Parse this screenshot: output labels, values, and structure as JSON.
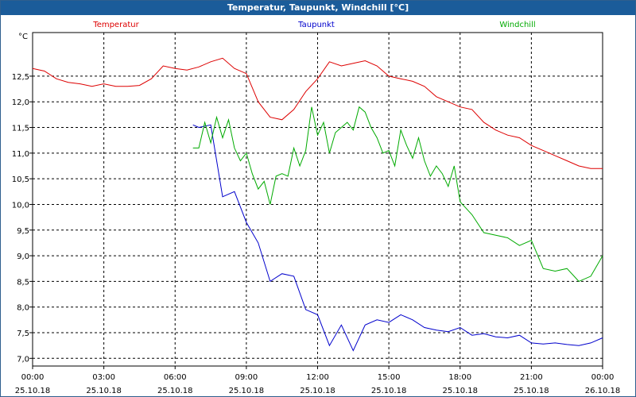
{
  "window": {
    "title": "Temperatur, Taupunkt, Windchill [°C]"
  },
  "chart_data": {
    "type": "line",
    "title": "Temperatur, Taupunkt, Windchill [°C]",
    "ylabel": "°C",
    "ylim": [
      6.85,
      13.35
    ],
    "grid": true,
    "legend_position": "top",
    "y_ticks": [
      "7,0",
      "7,5",
      "8,0",
      "8,5",
      "9,0",
      "9,5",
      "10,0",
      "10,5",
      "11,0",
      "11,5",
      "12,0",
      "12,5"
    ],
    "x_ticks": [
      {
        "time": "00:00",
        "date": "25.10.18"
      },
      {
        "time": "03:00",
        "date": "25.10.18"
      },
      {
        "time": "06:00",
        "date": "25.10.18"
      },
      {
        "time": "09:00",
        "date": "25.10.18"
      },
      {
        "time": "12:00",
        "date": "25.10.18"
      },
      {
        "time": "15:00",
        "date": "25.10.18"
      },
      {
        "time": "18:00",
        "date": "25.10.18"
      },
      {
        "time": "21:00",
        "date": "25.10.18"
      },
      {
        "time": "00:00",
        "date": "26.10.18"
      }
    ],
    "series": [
      {
        "name": "Temperatur",
        "color": "#dd0000",
        "x": [
          "00:00",
          "00:30",
          "01:00",
          "01:30",
          "02:00",
          "02:30",
          "03:00",
          "03:30",
          "04:00",
          "04:30",
          "05:00",
          "05:30",
          "06:00",
          "06:30",
          "07:00",
          "07:30",
          "08:00",
          "08:30",
          "09:00",
          "09:30",
          "10:00",
          "10:30",
          "11:00",
          "11:30",
          "12:00",
          "12:30",
          "13:00",
          "13:30",
          "14:00",
          "14:30",
          "15:00",
          "15:30",
          "16:00",
          "16:30",
          "17:00",
          "17:30",
          "18:00",
          "18:30",
          "19:00",
          "19:30",
          "20:00",
          "20:30",
          "21:00",
          "21:30",
          "22:00",
          "22:30",
          "23:00",
          "23:30",
          "24:00"
        ],
        "values": [
          12.65,
          12.6,
          12.45,
          12.38,
          12.35,
          12.3,
          12.35,
          12.3,
          12.3,
          12.32,
          12.45,
          12.7,
          12.65,
          12.62,
          12.68,
          12.78,
          12.85,
          12.65,
          12.55,
          12.0,
          11.7,
          11.65,
          11.85,
          12.2,
          12.45,
          12.78,
          12.7,
          12.75,
          12.8,
          12.7,
          12.5,
          12.45,
          12.4,
          12.3,
          12.1,
          12.0,
          11.9,
          11.85,
          11.6,
          11.45,
          11.35,
          11.3,
          11.15,
          11.05,
          10.95,
          10.85,
          10.75,
          10.7,
          10.7
        ]
      },
      {
        "name": "Taupunkt",
        "color": "#0000cc",
        "x": [
          "06:45",
          "07:00",
          "07:30",
          "08:00",
          "08:30",
          "09:00",
          "09:30",
          "10:00",
          "10:30",
          "11:00",
          "11:30",
          "12:00",
          "12:30",
          "13:00",
          "13:30",
          "14:00",
          "14:30",
          "15:00",
          "15:30",
          "16:00",
          "16:30",
          "17:00",
          "17:30",
          "18:00",
          "18:30",
          "19:00",
          "19:30",
          "20:00",
          "20:30",
          "21:00",
          "21:30",
          "22:00",
          "22:30",
          "23:00",
          "23:30",
          "24:00"
        ],
        "values": [
          11.55,
          11.5,
          11.55,
          10.15,
          10.25,
          9.65,
          9.25,
          8.5,
          8.65,
          8.6,
          7.95,
          7.85,
          7.25,
          7.65,
          7.15,
          7.65,
          7.75,
          7.7,
          7.85,
          7.75,
          7.6,
          7.55,
          7.52,
          7.6,
          7.45,
          7.48,
          7.42,
          7.4,
          7.45,
          7.3,
          7.28,
          7.3,
          7.27,
          7.25,
          7.3,
          7.4
        ]
      },
      {
        "name": "Windchill",
        "color": "#00aa00",
        "x": [
          "06:45",
          "07:00",
          "07:15",
          "07:30",
          "07:45",
          "08:00",
          "08:15",
          "08:30",
          "08:45",
          "09:00",
          "09:15",
          "09:30",
          "09:45",
          "10:00",
          "10:15",
          "10:30",
          "10:45",
          "11:00",
          "11:15",
          "11:30",
          "11:45",
          "12:00",
          "12:15",
          "12:30",
          "12:45",
          "13:00",
          "13:15",
          "13:30",
          "13:45",
          "14:00",
          "14:15",
          "14:30",
          "14:45",
          "15:00",
          "15:15",
          "15:30",
          "15:45",
          "16:00",
          "16:15",
          "16:30",
          "16:45",
          "17:00",
          "17:15",
          "17:30",
          "17:45",
          "18:00",
          "18:30",
          "19:00",
          "19:30",
          "20:00",
          "20:30",
          "21:00",
          "21:30",
          "22:00",
          "22:30",
          "23:00",
          "23:30",
          "24:00"
        ],
        "values": [
          11.1,
          11.1,
          11.6,
          11.2,
          11.7,
          11.3,
          11.65,
          11.1,
          10.85,
          11.0,
          10.6,
          10.3,
          10.45,
          10.0,
          10.55,
          10.6,
          10.55,
          11.1,
          10.75,
          11.05,
          11.9,
          11.35,
          11.6,
          11.0,
          11.4,
          11.5,
          11.6,
          11.45,
          11.9,
          11.8,
          11.5,
          11.3,
          11.0,
          11.05,
          10.75,
          11.45,
          11.15,
          10.9,
          11.3,
          10.85,
          10.55,
          10.75,
          10.6,
          10.35,
          10.75,
          10.05,
          9.8,
          9.45,
          9.4,
          9.35,
          9.2,
          9.3,
          8.75,
          8.7,
          8.75,
          8.5,
          8.6,
          9.0
        ]
      }
    ]
  }
}
